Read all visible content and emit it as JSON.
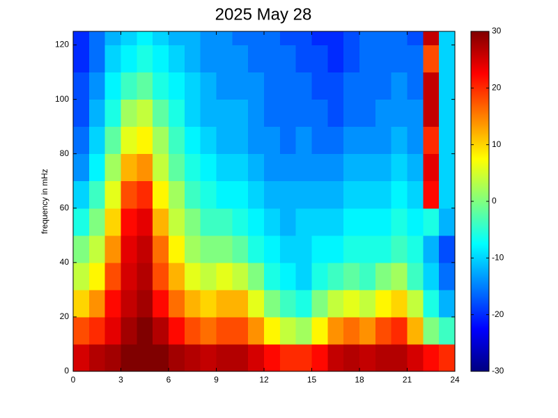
{
  "chart_data": {
    "type": "heatmap",
    "title": "2025 May 28",
    "y_label": "frequency in mHz",
    "colormap": "jet",
    "x_edges": [
      0,
      1,
      2,
      3,
      4,
      5,
      6,
      7,
      8,
      9,
      10,
      11,
      12,
      13,
      14,
      15,
      16,
      17,
      18,
      19,
      20,
      21,
      22,
      23,
      24
    ],
    "y_edges": [
      0,
      10,
      20,
      30,
      40,
      50,
      60,
      70,
      80,
      90,
      100,
      110,
      120,
      125
    ],
    "xlim": [
      0,
      24
    ],
    "xticks": [
      0,
      3,
      6,
      9,
      12,
      15,
      18,
      21,
      24
    ],
    "ylim": [
      0,
      125
    ],
    "yticks": [
      0,
      20,
      40,
      60,
      80,
      100,
      120
    ],
    "clim": [
      -30,
      30
    ],
    "cticks": [
      -30,
      -20,
      -10,
      0,
      10,
      20,
      30
    ],
    "z": [
      [
        25,
        27,
        28,
        30,
        30,
        30,
        28,
        27,
        26,
        27,
        27,
        25,
        22,
        20,
        20,
        22,
        26,
        27,
        26,
        27,
        27,
        25,
        22,
        20
      ],
      [
        18,
        20,
        24,
        28,
        30,
        27,
        22,
        18,
        16,
        18,
        18,
        14,
        8,
        4,
        2,
        8,
        14,
        16,
        14,
        18,
        20,
        12,
        0,
        -4
      ],
      [
        10,
        14,
        22,
        26,
        28,
        22,
        16,
        12,
        10,
        12,
        12,
        6,
        0,
        -4,
        -6,
        0,
        4,
        6,
        4,
        8,
        10,
        4,
        -6,
        -12
      ],
      [
        4,
        8,
        18,
        25,
        27,
        18,
        12,
        6,
        4,
        6,
        4,
        0,
        -6,
        -8,
        -10,
        -6,
        -4,
        -2,
        -4,
        0,
        2,
        -4,
        -10,
        -16
      ],
      [
        0,
        4,
        14,
        24,
        26,
        16,
        8,
        2,
        0,
        0,
        -2,
        -6,
        -8,
        -10,
        -10,
        -8,
        -8,
        -6,
        -6,
        -6,
        -4,
        -6,
        -12,
        -18
      ],
      [
        -6,
        0,
        10,
        22,
        24,
        12,
        4,
        0,
        -4,
        -4,
        -6,
        -8,
        -10,
        -12,
        -10,
        -10,
        -10,
        -8,
        -8,
        -8,
        -6,
        -8,
        -6,
        -12
      ],
      [
        -10,
        -4,
        6,
        18,
        20,
        8,
        2,
        -4,
        -6,
        -8,
        -8,
        -10,
        -12,
        -12,
        -12,
        -12,
        -12,
        -10,
        -10,
        -10,
        -8,
        -10,
        22,
        -10
      ],
      [
        -14,
        -8,
        2,
        12,
        14,
        4,
        -2,
        -6,
        -8,
        -10,
        -10,
        -12,
        -14,
        -14,
        -14,
        -14,
        -14,
        -12,
        -12,
        -12,
        -10,
        -12,
        24,
        -10
      ],
      [
        -16,
        -10,
        -2,
        6,
        8,
        2,
        -4,
        -8,
        -10,
        -12,
        -12,
        -14,
        -14,
        -16,
        -14,
        -16,
        -16,
        -14,
        -14,
        -14,
        -12,
        -14,
        20,
        -10
      ],
      [
        -18,
        -12,
        -6,
        2,
        4,
        -2,
        -6,
        -10,
        -12,
        -12,
        -12,
        -14,
        -16,
        -16,
        -16,
        -16,
        -18,
        -16,
        -16,
        -14,
        -14,
        -14,
        26,
        -10
      ],
      [
        -18,
        -14,
        -8,
        -4,
        -2,
        -6,
        -8,
        -10,
        -12,
        -14,
        -14,
        -14,
        -16,
        -16,
        -16,
        -18,
        -18,
        -16,
        -16,
        -16,
        -14,
        -16,
        26,
        -10
      ],
      [
        -20,
        -16,
        -10,
        -8,
        -6,
        -8,
        -10,
        -12,
        -14,
        -14,
        -14,
        -16,
        -16,
        -16,
        -18,
        -18,
        -20,
        -18,
        -16,
        -16,
        -16,
        -16,
        18,
        -10
      ],
      [
        -20,
        -16,
        -12,
        -10,
        -8,
        -10,
        -12,
        -12,
        -14,
        -14,
        -16,
        -16,
        -16,
        -18,
        -18,
        -20,
        -20,
        -18,
        -16,
        -16,
        -16,
        -18,
        26,
        -10
      ]
    ]
  }
}
